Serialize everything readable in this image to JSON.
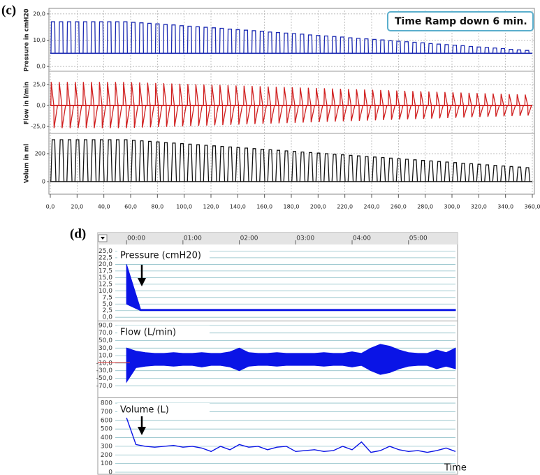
{
  "panel_labels": [
    "(c)",
    "(d)"
  ],
  "chart_data": [
    {
      "type": "breath",
      "annotation": "Time Ramp down  6 min.",
      "xlim": [
        0,
        360
      ],
      "xticks": [
        {
          "value": 0,
          "label": "0,0"
        },
        {
          "value": 20,
          "label": "20,0"
        },
        {
          "value": 40,
          "label": "40,0"
        },
        {
          "value": 60,
          "label": "60,0"
        },
        {
          "value": 80,
          "label": "80,0"
        },
        {
          "value": 100,
          "label": "100,0"
        },
        {
          "value": 120,
          "label": "120,0"
        },
        {
          "value": 140,
          "label": "140,0"
        },
        {
          "value": 160,
          "label": "160,0"
        },
        {
          "value": 180,
          "label": "180,0"
        },
        {
          "value": 200,
          "label": "200,0"
        },
        {
          "value": 220,
          "label": "220,0"
        },
        {
          "value": 240,
          "label": "240,0"
        },
        {
          "value": 260,
          "label": "260,0"
        },
        {
          "value": 280,
          "label": "280,0"
        },
        {
          "value": 300,
          "label": "300,0"
        },
        {
          "value": 320,
          "label": "320,0"
        },
        {
          "value": 340,
          "label": "340,0"
        },
        {
          "value": 360,
          "label": "360,0"
        }
      ],
      "x": [
        3,
        9,
        15,
        21,
        27,
        33,
        39,
        45,
        51,
        57,
        63,
        69,
        75,
        81,
        87,
        93,
        99,
        105,
        111,
        117,
        123,
        129,
        135,
        141,
        147,
        153,
        159,
        165,
        171,
        177,
        183,
        189,
        195,
        201,
        207,
        213,
        219,
        225,
        231,
        237,
        243,
        249,
        255,
        261,
        267,
        273,
        279,
        285,
        291,
        297,
        303,
        309,
        315,
        321,
        327,
        333,
        339,
        345,
        351,
        357
      ],
      "grid": true,
      "subplots": [
        {
          "y_label": "Pressure in cmH20",
          "ylim": [
            -1.3,
            21.3
          ],
          "yticks": [
            {
              "value": 0,
              "label": "0,0"
            },
            {
              "value": 10,
              "label": "10,0"
            },
            {
              "value": 20,
              "label": "20,0"
            }
          ],
          "baseline": 5,
          "series": [
            {
              "color": "#1c2bb3",
              "values": [
                17,
                17,
                17,
                17,
                17,
                17,
                17,
                17,
                17,
                17,
                16.8,
                16.6,
                16.4,
                16.2,
                16.0,
                15.8,
                15.5,
                15.3,
                15.1,
                14.9,
                14.7,
                14.5,
                14.2,
                14.0,
                13.8,
                13.6,
                13.4,
                13.1,
                12.9,
                12.7,
                12.5,
                12.3,
                12.0,
                11.8,
                11.6,
                11.4,
                11.2,
                10.9,
                10.7,
                10.5,
                10.3,
                10.1,
                9.8,
                9.6,
                9.4,
                9.2,
                9.0,
                8.7,
                8.5,
                8.3,
                8.1,
                7.9,
                7.6,
                7.4,
                7.2,
                7.0,
                6.8,
                6.5,
                6.3,
                6.1
              ]
            }
          ]
        },
        {
          "y_label": "Flow in l/min",
          "ylim": [
            -32.5,
            38.3
          ],
          "yticks": [
            {
              "value": -25,
              "label": "-25,0"
            },
            {
              "value": 0,
              "label": "0,0"
            },
            {
              "value": 25,
              "label": "25,0"
            }
          ],
          "baseline": 0,
          "series": [
            {
              "color": "#d01f1f",
              "values": [
                28,
                28,
                28,
                28,
                28,
                28,
                28,
                28,
                28,
                28,
                27.7,
                27.4,
                27.1,
                26.8,
                26.5,
                26.2,
                25.9,
                25.6,
                25.3,
                25.0,
                24.7,
                24.4,
                24.1,
                23.8,
                23.5,
                23.2,
                22.9,
                22.6,
                22.3,
                22.0,
                21.7,
                21.4,
                21.1,
                20.8,
                20.5,
                20.2,
                19.9,
                19.6,
                19.3,
                19.0,
                18.7,
                18.4,
                18.1,
                17.8,
                17.5,
                17.2,
                16.9,
                16.6,
                16.3,
                16.0,
                15.7,
                15.4,
                15.1,
                14.8,
                14.5,
                14.2,
                13.9,
                13.6,
                13.3,
                13.0
              ]
            },
            {
              "color": "#d01f1f",
              "values": [
                -27,
                -27,
                -27,
                -27,
                -27,
                -27,
                -27,
                -27,
                -27,
                -27,
                -26.7,
                -26.4,
                -26.1,
                -25.8,
                -25.5,
                -25.2,
                -24.9,
                -24.6,
                -24.3,
                -24.0,
                -23.7,
                -23.4,
                -23.1,
                -22.8,
                -22.5,
                -22.2,
                -21.9,
                -21.6,
                -21.3,
                -21.0,
                -20.7,
                -20.4,
                -20.1,
                -19.8,
                -19.5,
                -19.2,
                -18.9,
                -18.6,
                -18.3,
                -18.0,
                -17.7,
                -17.4,
                -17.1,
                -16.8,
                -16.5,
                -16.2,
                -15.9,
                -15.6,
                -15.3,
                -15.0,
                -14.7,
                -14.4,
                -14.1,
                -13.8,
                -13.5,
                -13.2,
                -12.9,
                -12.6,
                -12.3,
                -12.0
              ]
            }
          ]
        },
        {
          "y_label": "Volum in ml",
          "ylim": [
            -75,
            335
          ],
          "yticks": [
            0,
            200
          ],
          "baseline": 0,
          "series": [
            {
              "color": "#111111",
              "values": [
                300,
                300,
                300,
                300,
                300,
                300,
                300,
                300,
                300,
                300,
                296,
                292,
                288,
                284,
                280,
                276,
                272,
                268,
                264,
                260,
                256,
                252,
                248,
                244,
                240,
                236,
                232,
                228,
                224,
                220,
                216,
                212,
                208,
                204,
                200,
                196,
                192,
                188,
                184,
                180,
                176,
                172,
                168,
                164,
                160,
                156,
                152,
                148,
                144,
                140,
                136,
                132,
                128,
                124,
                120,
                116,
                112,
                108,
                104,
                100
              ]
            }
          ]
        }
      ]
    },
    {
      "type": "trace",
      "x_label": "Time",
      "xlim": [
        -12,
        350
      ],
      "xticks": [
        {
          "value": 0,
          "label": "00:00"
        },
        {
          "value": 60,
          "label": "01:00"
        },
        {
          "value": 120,
          "label": "02:00"
        },
        {
          "value": 180,
          "label": "03:00"
        },
        {
          "value": 240,
          "label": "04:00"
        },
        {
          "value": 300,
          "label": "05:00"
        }
      ],
      "subplots": [
        {
          "title": "Pressure (cmH20)",
          "ylim": [
            -1,
            27.5
          ],
          "yticks": [
            {
              "value": 0,
              "label": "0,0"
            },
            {
              "value": 2.5,
              "label": "2,5"
            },
            {
              "value": 5,
              "label": "5,0"
            },
            {
              "value": 7.5,
              "label": "7,5"
            },
            {
              "value": 10,
              "label": "10,0"
            },
            {
              "value": 12.5,
              "label": "12,5"
            },
            {
              "value": 15,
              "label": "15,0"
            },
            {
              "value": 17.5,
              "label": "17,5"
            },
            {
              "value": 20,
              "label": "20,0"
            },
            {
              "value": 22.5,
              "label": "22,5"
            },
            {
              "value": 25,
              "label": "25,0"
            }
          ],
          "x": [
            0,
            15,
            350
          ],
          "series": [
            {
              "color": "#0a14e6",
              "values": [
                20,
                3,
                3
              ]
            },
            {
              "color": "#0a14e6",
              "values": [
                5,
                2.5,
                2.5
              ]
            }
          ]
        },
        {
          "title": "Flow (L/min)",
          "ylim": [
            -99,
            99
          ],
          "yticks": [
            {
              "value": -70,
              "label": "-70,0"
            },
            {
              "value": -50,
              "label": "-50,0"
            },
            {
              "value": -30,
              "label": "-30,0"
            },
            {
              "value": -10,
              "label": "-10,0"
            },
            {
              "value": 10,
              "label": "10,0"
            },
            {
              "value": 30,
              "label": "30,0"
            },
            {
              "value": 50,
              "label": "50,0"
            },
            {
              "value": 70,
              "label": "70,0"
            },
            {
              "value": 90,
              "label": "90,0"
            }
          ],
          "x": [
            0,
            10,
            20,
            30,
            40,
            50,
            60,
            70,
            80,
            90,
            100,
            110,
            120,
            130,
            140,
            150,
            160,
            170,
            180,
            190,
            200,
            210,
            220,
            230,
            240,
            250,
            260,
            270,
            280,
            290,
            300,
            310,
            320,
            330,
            340,
            350
          ],
          "series": [
            {
              "color": "#0a14e6",
              "values": [
                30,
                22,
                18,
                16,
                16,
                18,
                16,
                16,
                18,
                16,
                16,
                20,
                30,
                18,
                16,
                16,
                18,
                16,
                16,
                16,
                16,
                18,
                16,
                16,
                20,
                16,
                30,
                40,
                35,
                25,
                18,
                16,
                16,
                25,
                18,
                30
              ]
            },
            {
              "color": "#0a14e6",
              "values": [
                -60,
                -22,
                -18,
                -16,
                -16,
                -18,
                -16,
                -16,
                -20,
                -16,
                -16,
                -20,
                -30,
                -18,
                -16,
                -16,
                -18,
                -16,
                -16,
                -16,
                -16,
                -18,
                -16,
                -16,
                -20,
                -16,
                -30,
                -40,
                -35,
                -25,
                -18,
                -16,
                -16,
                -25,
                -18,
                -25
              ]
            }
          ]
        },
        {
          "title": "Volume (L)",
          "ylim": [
            -16,
            849
          ],
          "yticks": [
            0,
            100,
            200,
            300,
            400,
            500,
            600,
            700,
            800
          ],
          "x": [
            0,
            10,
            20,
            30,
            40,
            50,
            60,
            70,
            80,
            90,
            100,
            110,
            120,
            130,
            140,
            150,
            160,
            170,
            180,
            190,
            200,
            210,
            220,
            230,
            240,
            250,
            260,
            270,
            280,
            290,
            300,
            310,
            320,
            330,
            340,
            350
          ],
          "series": [
            {
              "color": "#0a14e6",
              "values": [
                630,
                320,
                300,
                290,
                300,
                310,
                290,
                300,
                280,
                240,
                300,
                260,
                320,
                290,
                300,
                260,
                290,
                300,
                240,
                250,
                260,
                240,
                250,
                300,
                260,
                350,
                230,
                250,
                300,
                260,
                240,
                250,
                230,
                250,
                280,
                240
              ]
            }
          ]
        }
      ]
    }
  ]
}
